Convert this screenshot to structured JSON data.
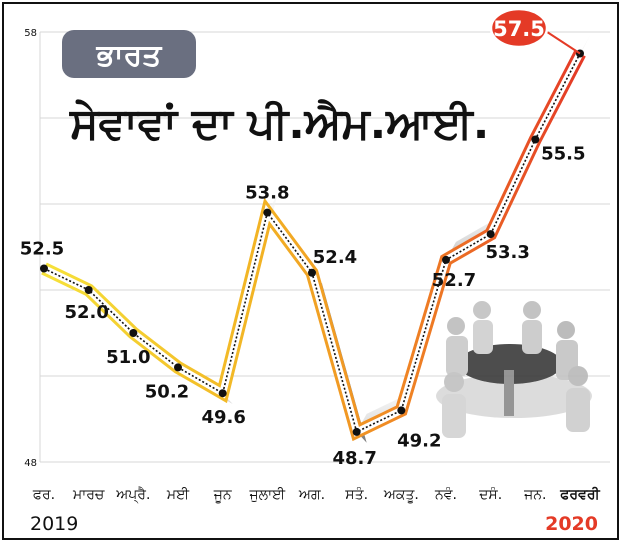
{
  "header": {
    "badge": "ਭਾਰਤ",
    "title": "ਸੇਵਾਵਾਂ ਦਾ ਪੀ.ਐਮ.ਆਈ."
  },
  "years": {
    "start": "2019",
    "end": "2020"
  },
  "colors": {
    "badge_bg": "#6a6f80",
    "yellow": "#f6e23a",
    "orange": "#f0a020",
    "red": "#e43a26",
    "accent_text": "#e43a26",
    "callout_bg": "#e43a26"
  },
  "chart_data": {
    "type": "line",
    "title": "ਸੇਵਾਵਾਂ ਦਾ ਪੀ.ਐਮ.ਆਈ.",
    "categories": [
      "ਫਰ.",
      "ਮਾਰਚ",
      "ਅਪ੍ਰੈ.",
      "ਮਈ",
      "ਜੂਨ",
      "ਜੁਲਾਈ",
      "ਅਗ.",
      "ਸਤੰ.",
      "ਅਕਤੂ.",
      "ਨਵੰ.",
      "ਦਸੰ.",
      "ਜਨ.",
      "ਫਰਵਰੀ"
    ],
    "values": [
      52.5,
      52.0,
      51.0,
      50.2,
      49.6,
      53.8,
      52.4,
      48.7,
      49.2,
      52.7,
      53.3,
      55.5,
      57.5
    ],
    "labels": [
      "52.5",
      "52.0",
      "51.0",
      "50.2",
      "49.6",
      "53.8",
      "52.4",
      "48.7",
      "49.2",
      "52.7",
      "53.3",
      "55.5",
      "57.5"
    ],
    "y_ticks": [
      "58",
      "48"
    ],
    "ylim": [
      48,
      58
    ],
    "grid": true,
    "highlight_last": true
  }
}
